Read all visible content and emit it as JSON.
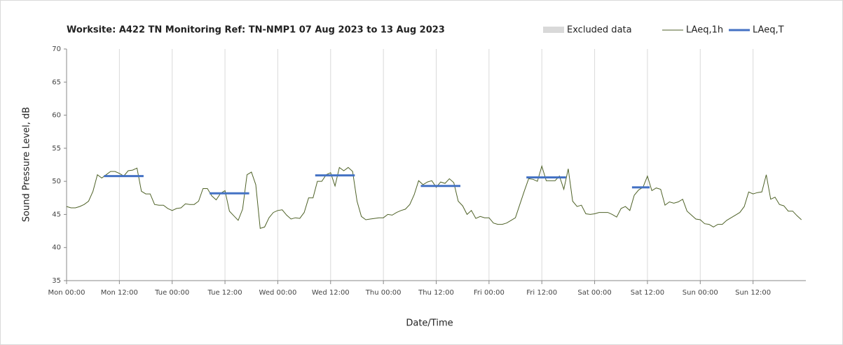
{
  "chart_data": {
    "type": "line",
    "title": "Worksite: A422 TN    Monitoring Ref: TN-NMP1     07 Aug 2023 to 13 Aug 2023",
    "xlabel": "Date/Time",
    "ylabel": "Sound Pressure Level, dB",
    "xlim": [
      0,
      168
    ],
    "ylim": [
      35,
      70
    ],
    "yticks": [
      35,
      40,
      45,
      50,
      55,
      60,
      65,
      70
    ],
    "xticks": [
      {
        "value": 0,
        "label": "Mon 00:00"
      },
      {
        "value": 12,
        "label": "Mon 12:00"
      },
      {
        "value": 24,
        "label": "Tue 00:00"
      },
      {
        "value": 36,
        "label": "Tue 12:00"
      },
      {
        "value": 48,
        "label": "Wed 00:00"
      },
      {
        "value": 60,
        "label": "Wed 12:00"
      },
      {
        "value": 72,
        "label": "Thu 00:00"
      },
      {
        "value": 84,
        "label": "Thu 12:00"
      },
      {
        "value": 96,
        "label": "Fri 00:00"
      },
      {
        "value": 108,
        "label": "Fri 12:00"
      },
      {
        "value": 120,
        "label": "Sat 00:00"
      },
      {
        "value": 132,
        "label": "Sat 12:00"
      },
      {
        "value": 144,
        "label": "Sun 00:00"
      },
      {
        "value": 156,
        "label": "Sun 12:00"
      }
    ],
    "grid": true,
    "series": [
      {
        "name": "Excluded data",
        "color": "#d9d9d9",
        "x": [],
        "values": []
      },
      {
        "name": "LAeq,1h",
        "color": "#4f6228",
        "x": [
          0,
          1,
          2,
          3,
          4,
          5,
          6,
          7,
          8,
          9,
          10,
          11,
          12,
          13,
          14,
          15,
          16,
          17,
          18,
          19,
          20,
          21,
          22,
          23,
          24,
          25,
          26,
          27,
          28,
          29,
          30,
          31,
          32,
          33,
          34,
          35,
          36,
          37,
          38,
          39,
          40,
          41,
          42,
          43,
          44,
          45,
          46,
          47,
          48,
          49,
          50,
          51,
          52,
          53,
          54,
          55,
          56,
          57,
          58,
          59,
          60,
          61,
          62,
          63,
          64,
          65,
          66,
          67,
          68,
          69,
          70,
          71,
          72,
          73,
          74,
          75,
          76,
          77,
          78,
          79,
          80,
          81,
          82,
          83,
          84,
          85,
          86,
          87,
          88,
          89,
          90,
          91,
          92,
          93,
          94,
          95,
          96,
          97,
          98,
          99,
          100,
          101,
          102,
          103,
          104,
          105,
          106,
          107,
          108,
          109,
          110,
          111,
          112,
          113,
          114,
          115,
          116,
          117,
          118,
          119,
          120,
          121,
          122,
          123,
          124,
          125,
          126,
          127,
          128,
          129,
          130,
          131,
          132,
          133,
          134,
          135,
          136,
          137,
          138,
          139,
          140,
          141,
          142,
          143,
          144,
          145,
          146,
          147,
          148,
          149,
          150,
          151,
          152,
          153,
          154,
          155,
          156,
          157,
          158,
          159,
          160,
          161,
          162,
          163,
          164,
          165,
          166,
          167
        ],
        "values": [
          46.2,
          46.0,
          46.0,
          46.2,
          46.5,
          47.0,
          48.5,
          51.0,
          50.5,
          51.0,
          51.5,
          51.5,
          51.2,
          50.8,
          51.6,
          51.7,
          52.0,
          48.5,
          48.1,
          48.1,
          46.5,
          46.4,
          46.4,
          45.9,
          45.6,
          45.9,
          46.0,
          46.6,
          46.5,
          46.5,
          47.0,
          48.9,
          48.9,
          47.8,
          47.2,
          48.2,
          48.6,
          45.5,
          44.8,
          44.1,
          45.8,
          51.0,
          51.4,
          49.5,
          42.9,
          43.1,
          44.5,
          45.3,
          45.6,
          45.7,
          44.9,
          44.3,
          44.5,
          44.4,
          45.3,
          47.5,
          47.5,
          50.0,
          50.0,
          51.0,
          51.3,
          49.3,
          52.1,
          51.6,
          52.1,
          51.5,
          47.0,
          44.7,
          44.2,
          44.3,
          44.4,
          44.5,
          44.5,
          45.0,
          44.9,
          45.3,
          45.6,
          45.8,
          46.5,
          48.0,
          50.1,
          49.5,
          49.9,
          50.1,
          49.1,
          49.9,
          49.7,
          50.4,
          49.8,
          47.0,
          46.3,
          45.0,
          45.6,
          44.4,
          44.7,
          44.5,
          44.5,
          43.7,
          43.5,
          43.5,
          43.7,
          44.1,
          44.5,
          46.5,
          48.5,
          50.4,
          50.3,
          50.0,
          52.3,
          50.1,
          50.1,
          50.1,
          50.8,
          48.8,
          51.9,
          47.0,
          46.2,
          46.4,
          45.1,
          45.0,
          45.1,
          45.3,
          45.3,
          45.3,
          45.0,
          44.6,
          45.9,
          46.2,
          45.6,
          47.9,
          48.7,
          49.1,
          50.8,
          48.6,
          49.0,
          48.8,
          46.4,
          46.9,
          46.7,
          46.9,
          47.3,
          45.5,
          44.9,
          44.3,
          44.2,
          43.6,
          43.5,
          43.1,
          43.5,
          43.5,
          44.1,
          44.5,
          44.9,
          45.3,
          46.2,
          48.4,
          48.1,
          48.3,
          48.4,
          51.0,
          47.3,
          47.6,
          46.5,
          46.3,
          45.5,
          45.5,
          44.8,
          44.2
        ]
      },
      {
        "name": "LAeq,T",
        "color": "#4472c4",
        "x": [
          8.5,
          17.5,
          null,
          32.5,
          41.5,
          null,
          56.5,
          65.5,
          null,
          80.5,
          89.5,
          null,
          104.5,
          113.5,
          null,
          128.5,
          132.5
        ],
        "values": [
          50.8,
          50.8,
          null,
          48.2,
          48.2,
          null,
          50.9,
          50.9,
          null,
          49.3,
          49.3,
          null,
          50.6,
          50.6,
          null,
          49.1,
          49.1
        ]
      }
    ]
  }
}
